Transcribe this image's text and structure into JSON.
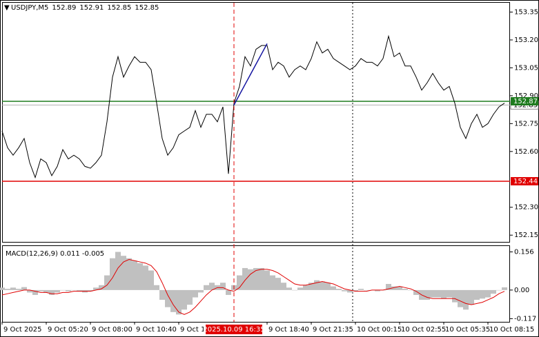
{
  "chart_data": [
    {
      "type": "line",
      "symbol": "USDJPY,M5",
      "ohlc": [
        152.89,
        152.91,
        152.85,
        152.85
      ],
      "categories": [
        "9 Oct 2025",
        null,
        null,
        null,
        null,
        null,
        null,
        null,
        "9 Oct 05:20",
        null,
        null,
        null,
        null,
        null,
        null,
        null,
        "9 Oct 08:00",
        null,
        null,
        null,
        null,
        null,
        null,
        null,
        "9 Oct 10:40",
        null,
        null,
        null,
        null,
        null,
        null,
        null,
        "9 Oct 13:20",
        null,
        null,
        null,
        null,
        null,
        null,
        null,
        null,
        null,
        "2025.10.09 16:35",
        null,
        null,
        null,
        null,
        null,
        "9 Oct 18:40",
        null,
        null,
        null,
        null,
        null,
        null,
        null,
        "9 Oct 21:35",
        null,
        null,
        null,
        null,
        null,
        null,
        null,
        "10 Oct 00:15",
        null,
        null,
        null,
        null,
        null,
        null,
        null,
        "10 Oct 02:55",
        null,
        null,
        null,
        null,
        null,
        null,
        null,
        "10 Oct 05:35",
        null,
        null,
        null,
        null,
        null,
        null,
        null,
        "10 Oct 08:15",
        null,
        null,
        null
      ],
      "series": [
        {
          "color": "#000000",
          "values": [
            152.71,
            152.62,
            152.58,
            152.62,
            152.67,
            152.54,
            152.46,
            152.56,
            152.54,
            152.47,
            152.52,
            152.61,
            152.56,
            152.58,
            152.56,
            152.52,
            152.51,
            152.54,
            152.58,
            152.76,
            153.0,
            153.11,
            153.0,
            153.06,
            153.11,
            153.08,
            153.08,
            153.04,
            152.86,
            152.67,
            152.58,
            152.62,
            152.69,
            152.71,
            152.73,
            152.82,
            152.73,
            152.8,
            152.8,
            152.76,
            152.84,
            152.48,
            152.86,
            152.95,
            153.11,
            153.06,
            153.15,
            153.17,
            153.17,
            153.04,
            153.08,
            153.06,
            153.0,
            153.04,
            153.06,
            153.04,
            153.1,
            153.19,
            153.13,
            153.15,
            153.1,
            153.08,
            153.06,
            153.04,
            153.06,
            153.1,
            153.08,
            153.08,
            153.06,
            153.1,
            153.22,
            153.11,
            153.13,
            153.06,
            153.06,
            153.0,
            152.93,
            152.97,
            153.02,
            152.97,
            152.93,
            152.95,
            152.86,
            152.73,
            152.67,
            152.75,
            152.8,
            152.73,
            152.75,
            152.8,
            152.84,
            152.86
          ]
        },
        {
          "color": "#1414a0",
          "values": [
            null,
            null,
            null,
            null,
            null,
            null,
            null,
            null,
            null,
            null,
            null,
            null,
            null,
            null,
            null,
            null,
            null,
            null,
            null,
            null,
            null,
            null,
            null,
            null,
            null,
            null,
            null,
            null,
            null,
            null,
            null,
            null,
            null,
            null,
            null,
            null,
            null,
            null,
            null,
            null,
            null,
            null,
            152.85,
            152.905,
            152.96,
            153.015,
            153.07,
            153.125,
            153.18,
            null,
            null,
            null,
            null,
            null,
            null,
            null,
            null,
            null,
            null,
            null,
            null,
            null,
            null,
            null,
            null,
            null,
            null,
            null,
            null,
            null,
            null,
            null,
            null,
            null,
            null,
            null,
            null,
            null,
            null,
            null,
            null,
            null,
            null,
            null,
            null,
            null,
            null,
            null,
            null,
            null,
            null,
            null
          ]
        }
      ],
      "ylim": [
        152.11,
        153.4
      ],
      "yticks": [
        153.35,
        {
          "value": 153.2,
          "label": "153.20"
        },
        153.05,
        {
          "value": 152.9,
          "label": "152.90"
        },
        152.75,
        {
          "value": 152.6,
          "label": "152.60"
        },
        {
          "value": 152.3,
          "label": "152.30"
        },
        152.15
      ],
      "hlines": [
        {
          "value": 152.87,
          "color": "#1e7b1e"
        },
        {
          "value": 152.44,
          "color": "#e00000"
        }
      ],
      "last_price": 152.85,
      "vline_color": "#e00000"
    },
    {
      "type": "macd",
      "title": "MACD(12,26,9) 0.011 -0.005",
      "series": [
        {
          "type": "bar",
          "color": "#c0c0c0",
          "values": [
            0.01,
            0.005,
            0.01,
            0.005,
            0.012,
            -0.01,
            -0.02,
            -0.005,
            -0.01,
            -0.02,
            -0.01,
            0,
            -0.005,
            0,
            -0.005,
            -0.01,
            -0.005,
            0.01,
            0.02,
            0.06,
            0.13,
            0.156,
            0.14,
            0.13,
            0.12,
            0.11,
            0.1,
            0.08,
            0.02,
            -0.04,
            -0.07,
            -0.09,
            -0.1,
            -0.08,
            -0.06,
            -0.03,
            -0.01,
            0.02,
            0.03,
            0.02,
            0.03,
            -0.02,
            0.02,
            0.06,
            0.09,
            0.085,
            0.09,
            0.09,
            0.08,
            0.06,
            0.05,
            0.03,
            0.01,
            0,
            0.01,
            0.02,
            0.03,
            0.04,
            0.035,
            0.03,
            0.015,
            0.005,
            -0.005,
            -0.01,
            -0.005,
            0.005,
            0,
            0,
            -0.005,
            0,
            0.025,
            0.015,
            0.015,
            0.005,
            0,
            -0.02,
            -0.04,
            -0.04,
            -0.03,
            -0.03,
            -0.035,
            -0.03,
            -0.05,
            -0.07,
            -0.08,
            -0.06,
            -0.04,
            -0.035,
            -0.03,
            -0.015,
            0,
            0.011
          ]
        },
        {
          "type": "line",
          "color": "#e00000",
          "values": [
            -0.02,
            -0.015,
            -0.01,
            -0.005,
            0,
            0,
            -0.005,
            -0.01,
            -0.01,
            -0.015,
            -0.015,
            -0.01,
            -0.01,
            -0.005,
            -0.005,
            -0.005,
            -0.005,
            0,
            0.005,
            0.02,
            0.05,
            0.09,
            0.115,
            0.125,
            0.12,
            0.115,
            0.11,
            0.1,
            0.075,
            0.03,
            -0.02,
            -0.06,
            -0.09,
            -0.1,
            -0.09,
            -0.07,
            -0.045,
            -0.02,
            0,
            0.01,
            0.01,
            0,
            -0.005,
            0.01,
            0.04,
            0.065,
            0.08,
            0.085,
            0.085,
            0.08,
            0.07,
            0.055,
            0.04,
            0.025,
            0.02,
            0.02,
            0.025,
            0.03,
            0.035,
            0.03,
            0.025,
            0.015,
            0.005,
            0,
            -0.005,
            -0.005,
            -0.005,
            0,
            0,
            0,
            0.005,
            0.01,
            0.015,
            0.01,
            0.005,
            -0.005,
            -0.02,
            -0.03,
            -0.035,
            -0.035,
            -0.035,
            -0.035,
            -0.035,
            -0.045,
            -0.055,
            -0.06,
            -0.055,
            -0.05,
            -0.04,
            -0.03,
            -0.015,
            -0.005
          ]
        }
      ],
      "ylim": [
        -0.13,
        0.18
      ],
      "yticks": [
        0.156,
        {
          "value": 0,
          "label": "0.00"
        },
        -0.117
      ]
    }
  ]
}
